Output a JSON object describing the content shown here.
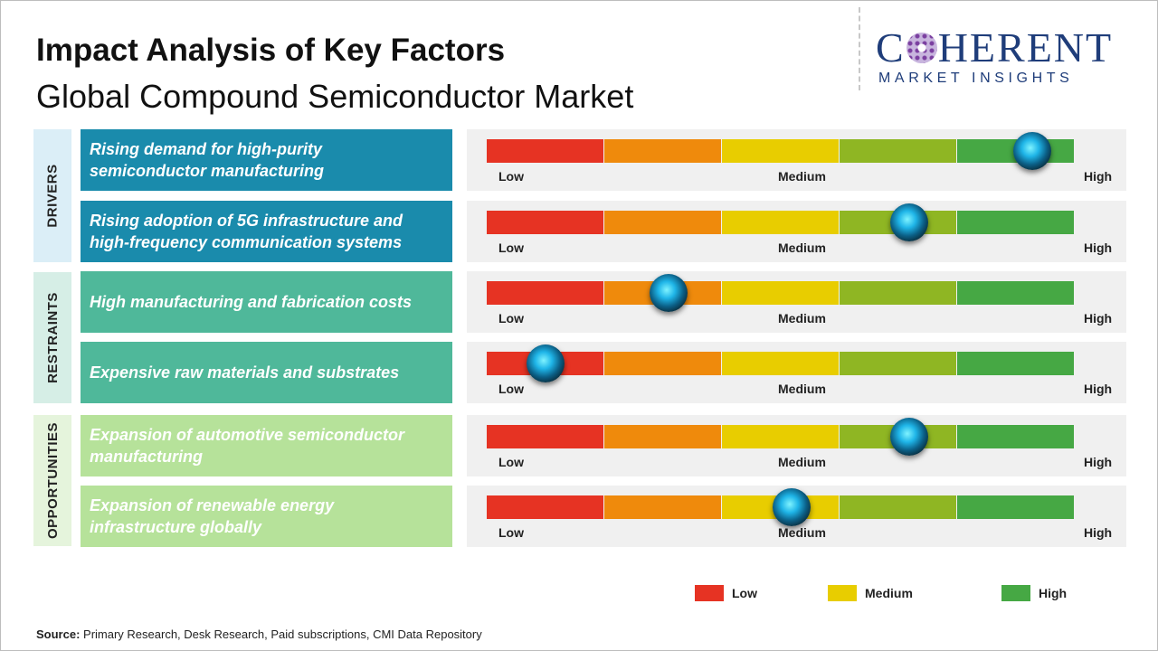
{
  "header": {
    "title": "Impact Analysis of Key Factors",
    "subtitle": "Global Compound Semiconductor Market"
  },
  "logo": {
    "main_left": "C",
    "main_right": "HERENT",
    "sub": "MARKET INSIGHTS"
  },
  "categories": [
    {
      "label": "DRIVERS",
      "color": "#dbeef7"
    },
    {
      "label": "RESTRAINTS",
      "color": "#d6eee6"
    },
    {
      "label": "OPPORTUNITIES",
      "color": "#e5f4dc"
    }
  ],
  "scale_colors": [
    "#e63323",
    "#ef8a0c",
    "#e8cd00",
    "#8fb623",
    "#46a844"
  ],
  "chart_data": {
    "type": "gauge",
    "scale_labels": [
      "Low",
      "Medium",
      "High"
    ],
    "rows": [
      {
        "category": "DRIVERS",
        "factor": "Rising demand for high-purity semiconductor manufacturing",
        "impact": 0.93,
        "box_color": "#1a8bac"
      },
      {
        "category": "DRIVERS",
        "factor": "Rising adoption of 5G infrastructure and high-frequency communication systems",
        "impact": 0.72,
        "box_color": "#1a8bac"
      },
      {
        "category": "RESTRAINTS",
        "factor": "High manufacturing and fabrication costs",
        "impact": 0.31,
        "box_color": "#4fb89a"
      },
      {
        "category": "RESTRAINTS",
        "factor": "Expensive raw materials and substrates",
        "impact": 0.1,
        "box_color": "#4fb89a"
      },
      {
        "category": "OPPORTUNITIES",
        "factor": "Expansion of automotive semiconductor manufacturing",
        "impact": 0.72,
        "box_color": "#b6e29a"
      },
      {
        "category": "OPPORTUNITIES",
        "factor": "Expansion of renewable energy infrastructure globally",
        "impact": 0.52,
        "box_color": "#b6e29a"
      }
    ]
  },
  "legend": [
    {
      "label": "Low",
      "color": "#e63323"
    },
    {
      "label": "Medium",
      "color": "#e8cd00"
    },
    {
      "label": "High",
      "color": "#46a844"
    }
  ],
  "source": {
    "label": "Source:",
    "text": " Primary Research, Desk Research, Paid subscriptions, CMI Data Repository"
  }
}
